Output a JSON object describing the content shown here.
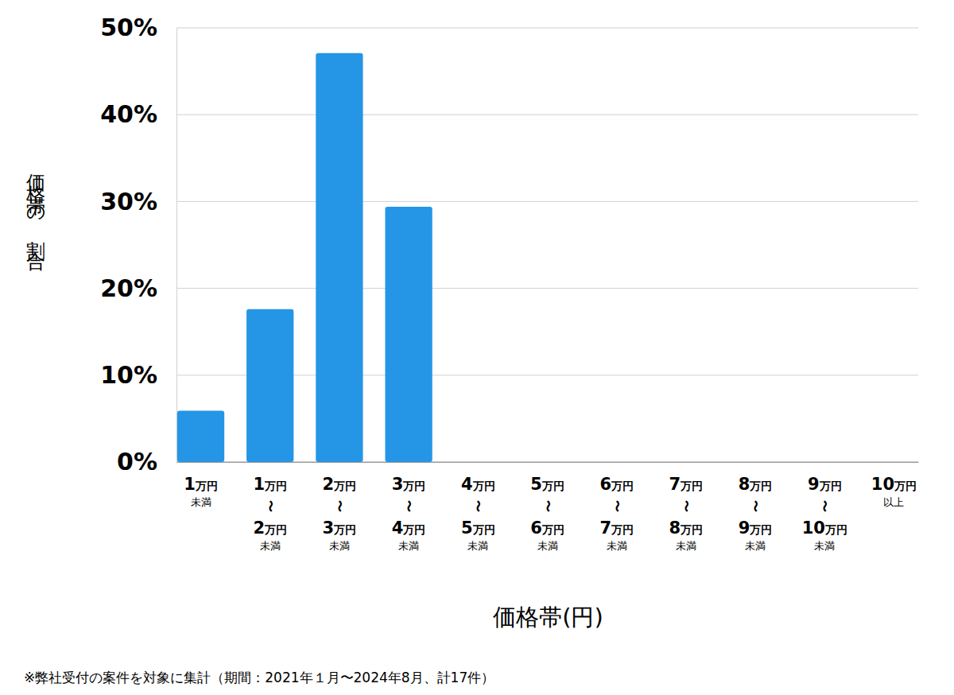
{
  "chart_data": {
    "type": "bar",
    "x_label": "価格帯(円)",
    "y_label": "価格帯の割合",
    "annotations": [
      "※弊社受付の案件を対象に集計（期間：2021年１月〜2024年8月、計17件）"
    ],
    "categories": [
      "1万円\n未満",
      "1万円\n〜\n2万円\n未満",
      "2万円\n〜\n3万円\n未満",
      "3万円\n〜\n4万円\n未満",
      "4万円\n〜\n5万円\n未満",
      "5万円\n〜\n6万円\n未満",
      "6万円\n〜\n7万円\n未満",
      "7万円\n〜\n8万円\n未満",
      "8万円\n〜\n9万円\n未満",
      "9万円\n〜\n10万円\n未満",
      "10万円\n以上"
    ],
    "values": [
      5.9,
      17.6,
      47.1,
      29.4,
      0,
      0,
      0,
      0,
      0,
      0,
      0
    ],
    "color": "#2596e6",
    "ylim": [
      0,
      50
    ],
    "yticks": [
      {
        "value": 0,
        "label": "0%"
      },
      {
        "value": 10,
        "label": "10%"
      },
      {
        "value": 20,
        "label": "20%"
      },
      {
        "value": 30,
        "label": "30%"
      },
      {
        "value": 40,
        "label": "40%"
      },
      {
        "value": 50,
        "label": "50%"
      }
    ],
    "grid": true,
    "data_labels": false
  }
}
